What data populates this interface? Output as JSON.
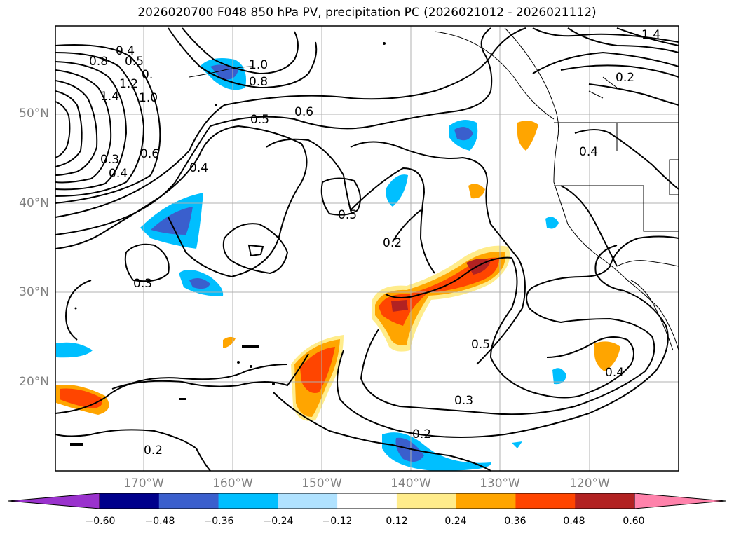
{
  "title": "2026020700 F048 850 hPa PV, precipitation PC (2026021012 - 2026021112)",
  "lat_labels": [
    "50°N",
    "40°N",
    "30°N",
    "20°N"
  ],
  "lon_labels": [
    "170°W",
    "160°W",
    "150°W",
    "140°W",
    "130°W",
    "120°W"
  ],
  "colorbar": {
    "tick_labels": [
      "−0.60",
      "−0.48",
      "−0.36",
      "−0.24",
      "−0.12",
      "0.12",
      "0.24",
      "0.36",
      "0.48",
      "0.60"
    ],
    "colors": [
      "#9a32cd",
      "#00008b",
      "#3a5fcd",
      "#00bfff",
      "#b0e2ff",
      "#ffffff",
      "#ffec8b",
      "#ffa500",
      "#ff4500",
      "#b22222",
      "#ff82ab"
    ]
  },
  "contour_labels": [
    "0.4",
    "0.5",
    "0.8",
    "1.4",
    "1.2",
    "1.0",
    "0.",
    "1.0",
    "0.8",
    "0.3",
    "0.4",
    "0.6",
    "0.4",
    "0.5",
    "0.6",
    "0.3",
    "0.5",
    "0.2",
    "0.3",
    "0.2",
    "0.5",
    "0.4",
    "0.2",
    "0.4",
    "1.4",
    "0.2"
  ],
  "colors": {
    "contour": "#000000",
    "grid": "#b0b0b0",
    "coast": "#000000"
  }
}
